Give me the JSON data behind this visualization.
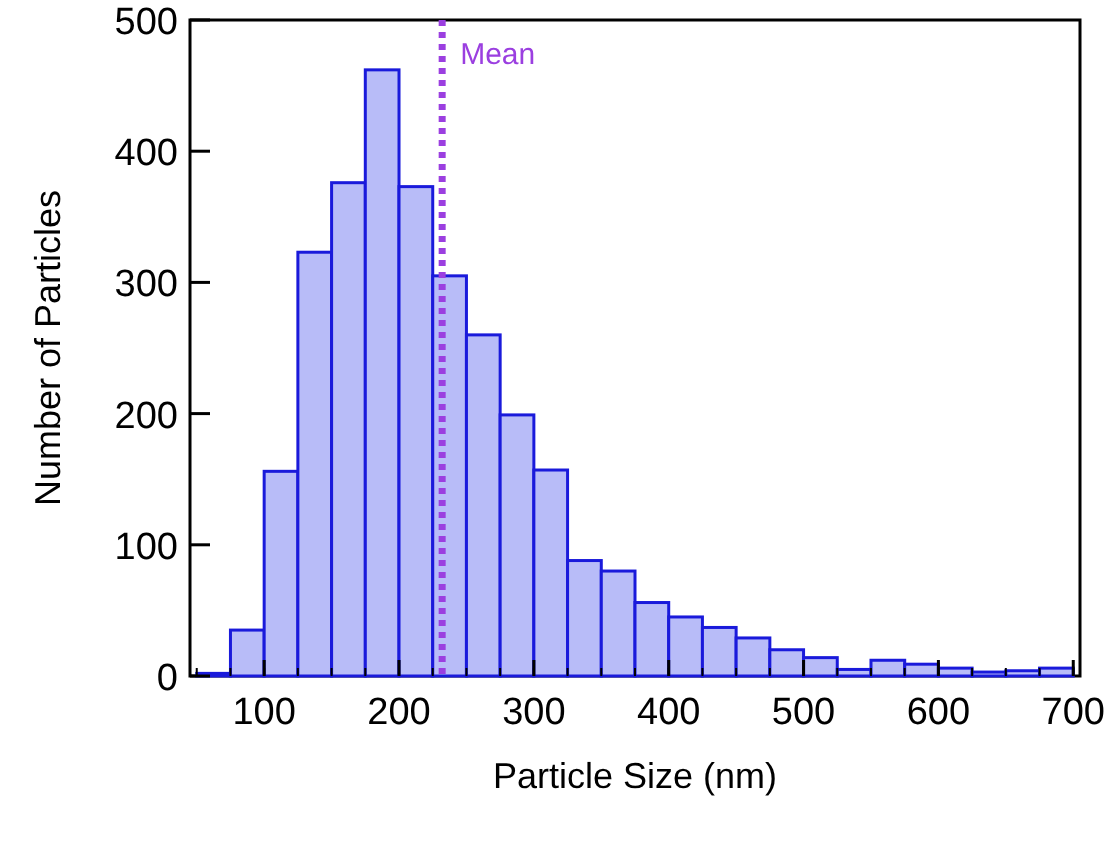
{
  "chart_data": {
    "type": "histogram",
    "xlabel": "Particle Size (nm)",
    "ylabel": "Number of Particles",
    "bins": [
      50,
      75,
      100,
      125,
      150,
      175,
      200,
      225,
      250,
      275,
      300,
      325,
      350,
      375,
      400,
      425,
      450,
      475,
      500,
      525,
      550,
      575,
      600,
      625,
      650,
      675,
      700
    ],
    "values": [
      2,
      35,
      156,
      323,
      376,
      462,
      373,
      305,
      260,
      199,
      157,
      88,
      80,
      56,
      45,
      37,
      29,
      20,
      14,
      5,
      12,
      9,
      6,
      3,
      4,
      6
    ],
    "color": "#b8bcf8",
    "xlim": [
      45,
      705
    ],
    "xticks": [
      100,
      200,
      300,
      400,
      500,
      600,
      700
    ],
    "ylim": [
      0,
      500
    ],
    "yticks": [
      0,
      100,
      200,
      300,
      400,
      500
    ],
    "ref_lines": [
      {
        "axis": "x",
        "value": 232,
        "label": "Mean",
        "color": "#9b3fe0",
        "line_style": "dotted"
      }
    ]
  }
}
